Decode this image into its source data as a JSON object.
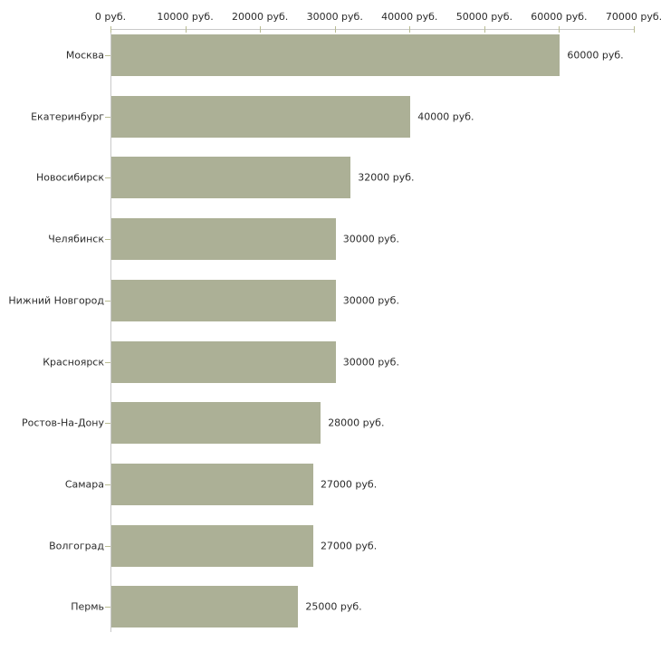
{
  "chart_data": {
    "type": "bar",
    "orientation": "horizontal",
    "title": "",
    "xlabel": "",
    "ylabel": "",
    "unit": "руб.",
    "xlim": [
      0,
      70000
    ],
    "grid": false,
    "legend": null,
    "categories": [
      "Москва",
      "Екатеринбург",
      "Новосибирск",
      "Челябинск",
      "Нижний Новгород",
      "Красноярск",
      "Ростов-На-Дону",
      "Самара",
      "Волгоград",
      "Пермь"
    ],
    "values": [
      60000,
      40000,
      32000,
      30000,
      30000,
      30000,
      28000,
      27000,
      27000,
      25000
    ],
    "value_labels": [
      "60000 руб.",
      "40000 руб.",
      "32000 руб.",
      "30000 руб.",
      "30000 руб.",
      "30000 руб.",
      "28000 руб.",
      "27000 руб.",
      "27000 руб.",
      "25000 руб."
    ],
    "x_ticks": [
      {
        "value": 0,
        "label": "0 руб."
      },
      {
        "value": 10000,
        "label": "10000 руб."
      },
      {
        "value": 20000,
        "label": "20000 руб."
      },
      {
        "value": 30000,
        "label": "30000 руб."
      },
      {
        "value": 40000,
        "label": "40000 руб."
      },
      {
        "value": 50000,
        "label": "50000 руб."
      },
      {
        "value": 60000,
        "label": "60000 руб."
      },
      {
        "value": 70000,
        "label": "70000 руб."
      }
    ],
    "colors": {
      "bar": "#acb096",
      "axis": "#c9c9c9",
      "tick": "#b9bc92",
      "text": "#2b2b2b",
      "background": "#ffffff"
    }
  }
}
